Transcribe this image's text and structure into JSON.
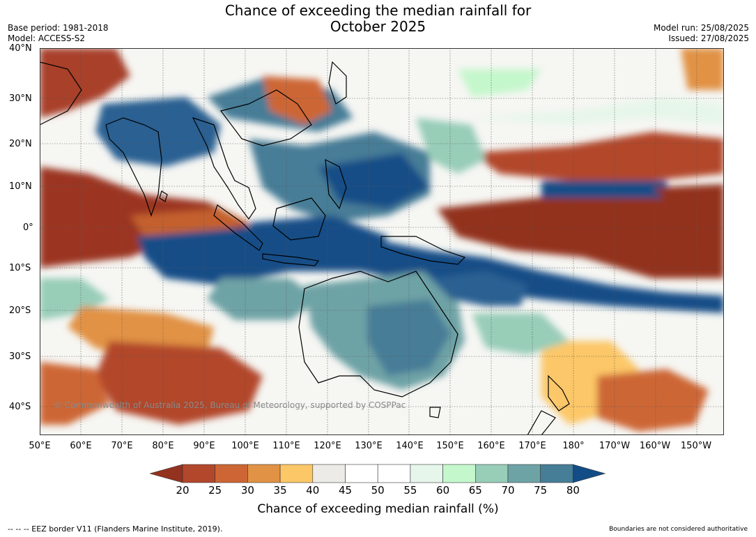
{
  "title": "Chance of exceeding the median rainfall for",
  "subtitle": "October 2025",
  "base_period": "Base period: 1981-2018",
  "model": "Model: ACCESS-S2",
  "model_run": "Model run: 25/08/2025",
  "issued": "Issued: 27/08/2025",
  "copyright": "© Commonwealth of Australia 2025, Bureau of Meteorology, supported by COSPPac",
  "lat_labels": [
    "40°N",
    "30°N",
    "20°N",
    "10°N",
    "0°",
    "10°S",
    "20°S",
    "30°S",
    "40°S"
  ],
  "lon_labels": [
    "50°E",
    "60°E",
    "70°E",
    "80°E",
    "90°E",
    "100°E",
    "110°E",
    "120°E",
    "130°E",
    "140°E",
    "150°E",
    "160°E",
    "170°E",
    "180°",
    "170°W",
    "160°W",
    "150°W"
  ],
  "colorbar": {
    "ticks": [
      "20",
      "25",
      "30",
      "35",
      "40",
      "45",
      "50",
      "55",
      "60",
      "65",
      "70",
      "75",
      "80"
    ],
    "colors": [
      "#93321f",
      "#b2472b",
      "#cd6634",
      "#e19244",
      "#fcc767",
      "#ecebe7",
      "#ffffff",
      "#ffffff",
      "#e7f6ea",
      "#c5f7cc",
      "#98cdb8",
      "#6ea3a6",
      "#467d97",
      "#134d87"
    ],
    "label": "Chance of exceeding median rainfall (%)"
  },
  "footer_left": "--  --  -- EEZ border V11 (Flanders Marine Institute, 2019).",
  "footer_right": "Boundaries are not considered authoritative"
}
